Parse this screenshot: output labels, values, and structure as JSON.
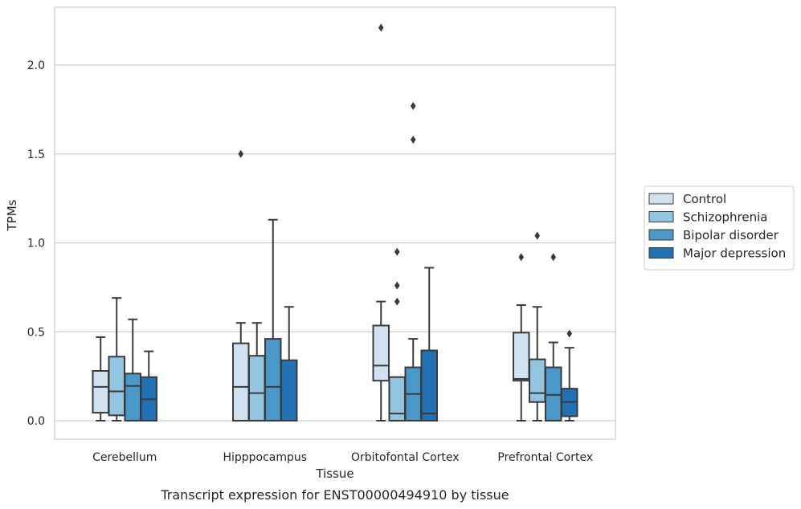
{
  "chart_data": {
    "type": "box",
    "caption": "Transcript expression for ENST00000494910 by tissue",
    "xlabel": "Tissue",
    "ylabel": "TPMs",
    "ylim": [
      -0.105,
      2.33
    ],
    "yticks": [
      "0.0",
      "0.5",
      "1.0",
      "1.5",
      "2.0"
    ],
    "grid": "horizontal",
    "legend_position": "right",
    "categories": [
      "Cerebellum",
      "Hipppocampus",
      "Orbitofontal Cortex",
      "Prefrontal Cortex"
    ],
    "colors": {
      "Control": "#d0e1f2",
      "Schizophrenia": "#94c4df",
      "Bipolar disorder": "#4a98c9",
      "Major depression": "#2271b5",
      "lines": "#3a3a3a",
      "grid": "#cccccc",
      "frame": "#cccccc"
    },
    "series": [
      {
        "name": "Control",
        "boxes": [
          {
            "whislo": 0.0,
            "q1": 0.045,
            "med": 0.19,
            "q3": 0.28,
            "whishi": 0.47,
            "fliers": []
          },
          {
            "whislo": 0.0,
            "q1": 0.0,
            "med": 0.19,
            "q3": 0.435,
            "whishi": 0.55,
            "fliers": [
              1.5
            ]
          },
          {
            "whislo": 0.0,
            "q1": 0.225,
            "med": 0.31,
            "q3": 0.535,
            "whishi": 0.67,
            "fliers": [
              2.21
            ]
          },
          {
            "whislo": 0.0,
            "q1": 0.225,
            "med": 0.235,
            "q3": 0.495,
            "whishi": 0.65,
            "fliers": [
              0.92
            ]
          }
        ]
      },
      {
        "name": "Schizophrenia",
        "boxes": [
          {
            "whislo": 0.0,
            "q1": 0.03,
            "med": 0.165,
            "q3": 0.36,
            "whishi": 0.69,
            "fliers": []
          },
          {
            "whislo": 0.0,
            "q1": 0.0,
            "med": 0.155,
            "q3": 0.365,
            "whishi": 0.55,
            "fliers": []
          },
          {
            "whislo": 0.0,
            "q1": 0.0,
            "med": 0.04,
            "q3": 0.245,
            "whishi": 0.245,
            "fliers": [
              0.67,
              0.76,
              0.95
            ]
          },
          {
            "whislo": 0.0,
            "q1": 0.105,
            "med": 0.155,
            "q3": 0.345,
            "whishi": 0.64,
            "fliers": [
              1.04
            ]
          }
        ]
      },
      {
        "name": "Bipolar disorder",
        "boxes": [
          {
            "whislo": 0.0,
            "q1": 0.0,
            "med": 0.195,
            "q3": 0.265,
            "whishi": 0.57,
            "fliers": []
          },
          {
            "whislo": 0.0,
            "q1": 0.0,
            "med": 0.19,
            "q3": 0.46,
            "whishi": 1.13,
            "fliers": []
          },
          {
            "whislo": 0.0,
            "q1": 0.0,
            "med": 0.15,
            "q3": 0.3,
            "whishi": 0.46,
            "fliers": [
              1.58,
              1.77
            ]
          },
          {
            "whislo": 0.0,
            "q1": 0.0,
            "med": 0.145,
            "q3": 0.3,
            "whishi": 0.44,
            "fliers": [
              0.92
            ]
          }
        ]
      },
      {
        "name": "Major depression",
        "boxes": [
          {
            "whislo": 0.0,
            "q1": 0.0,
            "med": 0.12,
            "q3": 0.245,
            "whishi": 0.39,
            "fliers": []
          },
          {
            "whislo": 0.0,
            "q1": 0.0,
            "med": 0.0,
            "q3": 0.34,
            "whishi": 0.64,
            "fliers": []
          },
          {
            "whislo": 0.0,
            "q1": 0.0,
            "med": 0.04,
            "q3": 0.395,
            "whishi": 0.86,
            "fliers": []
          },
          {
            "whislo": 0.0,
            "q1": 0.025,
            "med": 0.105,
            "q3": 0.18,
            "whishi": 0.41,
            "fliers": [
              0.49
            ]
          }
        ]
      }
    ]
  }
}
